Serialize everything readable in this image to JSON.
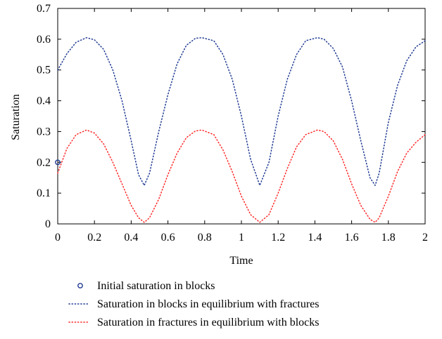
{
  "chart_data": {
    "type": "line",
    "title": "",
    "xlabel": "Time",
    "ylabel": "Saturation",
    "xlim": [
      0,
      2
    ],
    "ylim": [
      0,
      0.7
    ],
    "xticks": [
      0,
      0.2,
      0.4,
      0.6,
      0.8,
      1,
      1.2,
      1.4,
      1.6,
      1.8,
      2
    ],
    "xtick_labels": [
      "0",
      "0.2",
      "0.4",
      "0.6",
      "0.8",
      "1",
      "1.2",
      "1.4",
      "1.6",
      "1.8",
      "2"
    ],
    "yticks": [
      0,
      0.1,
      0.2,
      0.3,
      0.4,
      0.5,
      0.6,
      0.7
    ],
    "ytick_labels": [
      "0",
      "0.1",
      "0.2",
      "0.3",
      "0.4",
      "0.5",
      "0.6",
      "0.7"
    ],
    "grid": false,
    "legend_position": "below",
    "series": [
      {
        "name": "Initial saturation in blocks",
        "style": "marker",
        "color": "#1f3a93",
        "x": [
          0
        ],
        "y": [
          0.2
        ]
      },
      {
        "name": "Saturation in blocks in equilibrium with fractures",
        "style": "dotted",
        "color": "#1f3a93",
        "x": [
          0,
          0.05,
          0.1,
          0.157,
          0.2,
          0.25,
          0.3,
          0.35,
          0.4,
          0.44,
          0.471,
          0.5,
          0.55,
          0.6,
          0.65,
          0.7,
          0.75,
          0.785,
          0.85,
          0.9,
          0.95,
          1.0,
          1.05,
          1.1,
          1.15,
          1.2,
          1.25,
          1.3,
          1.35,
          1.414,
          1.45,
          1.5,
          1.55,
          1.6,
          1.65,
          1.7,
          1.728,
          1.75,
          1.8,
          1.85,
          1.9,
          1.95,
          2.0
        ],
        "y": [
          0.5,
          0.553,
          0.59,
          0.605,
          0.598,
          0.567,
          0.5,
          0.4,
          0.27,
          0.16,
          0.125,
          0.165,
          0.3,
          0.42,
          0.52,
          0.58,
          0.603,
          0.605,
          0.595,
          0.55,
          0.47,
          0.35,
          0.21,
          0.125,
          0.2,
          0.35,
          0.47,
          0.55,
          0.595,
          0.605,
          0.6,
          0.57,
          0.51,
          0.4,
          0.27,
          0.15,
          0.125,
          0.165,
          0.33,
          0.45,
          0.53,
          0.575,
          0.595
        ]
      },
      {
        "name": "Saturation in fractures in equilibrium with blocks",
        "style": "dotted",
        "color": "#ff2a2a",
        "x": [
          0,
          0.05,
          0.1,
          0.157,
          0.2,
          0.25,
          0.3,
          0.35,
          0.4,
          0.44,
          0.471,
          0.5,
          0.55,
          0.6,
          0.65,
          0.7,
          0.75,
          0.785,
          0.85,
          0.9,
          0.95,
          1.0,
          1.05,
          1.1,
          1.15,
          1.2,
          1.25,
          1.3,
          1.35,
          1.414,
          1.45,
          1.5,
          1.55,
          1.6,
          1.65,
          1.7,
          1.728,
          1.75,
          1.8,
          1.85,
          1.9,
          1.95,
          2.0
        ],
        "y": [
          0.165,
          0.245,
          0.29,
          0.305,
          0.295,
          0.26,
          0.2,
          0.13,
          0.06,
          0.02,
          0.005,
          0.02,
          0.08,
          0.16,
          0.23,
          0.28,
          0.302,
          0.305,
          0.29,
          0.24,
          0.17,
          0.09,
          0.03,
          0.005,
          0.03,
          0.1,
          0.18,
          0.25,
          0.29,
          0.305,
          0.3,
          0.27,
          0.21,
          0.13,
          0.06,
          0.015,
          0.005,
          0.02,
          0.09,
          0.17,
          0.23,
          0.265,
          0.29
        ]
      }
    ]
  }
}
